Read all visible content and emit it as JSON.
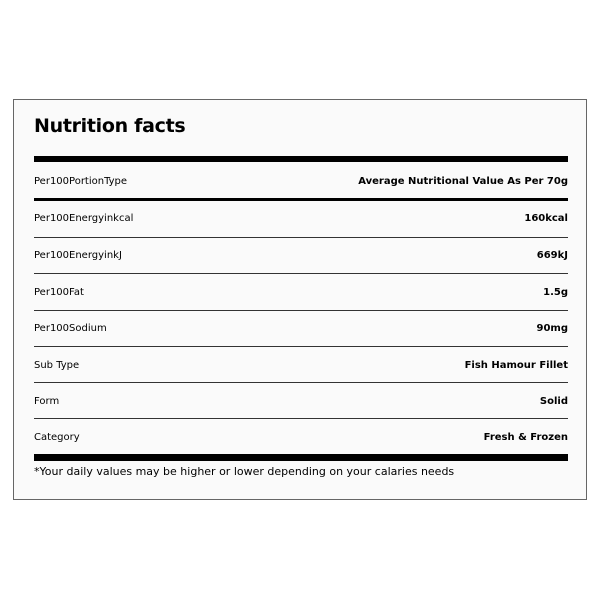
{
  "title": "Nutrition facts",
  "rows": [
    {
      "label": "Per100PortionType",
      "value": "Average Nutritional Value As Per 70g"
    },
    {
      "label": "Per100Energyinkcal",
      "value": "160kcal"
    },
    {
      "label": "Per100EnergyinkJ",
      "value": "669kJ"
    },
    {
      "label": "Per100Fat",
      "value": "1.5g"
    },
    {
      "label": "Per100Sodium",
      "value": "90mg"
    },
    {
      "label": "Sub Type",
      "value": "Fish Hamour Fillet"
    },
    {
      "label": "Form",
      "value": "Solid"
    },
    {
      "label": "Category",
      "value": "Fresh & Frozen"
    }
  ],
  "footnote": "*Your daily values may be higher or lower depending on your calaries needs"
}
